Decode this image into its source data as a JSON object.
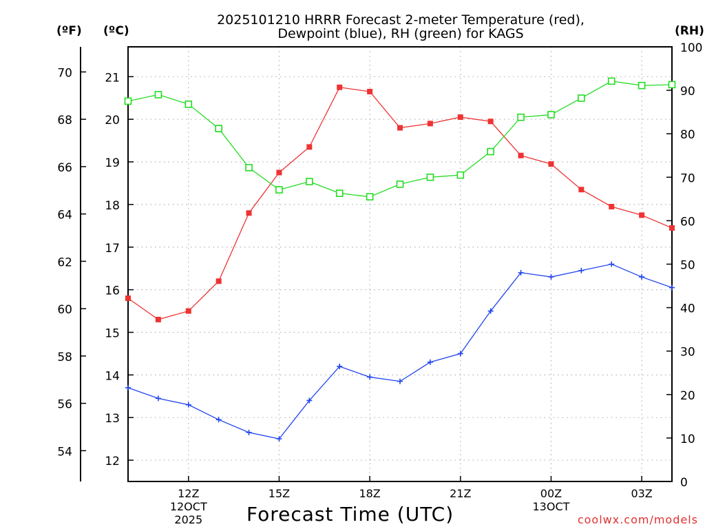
{
  "chart_data": {
    "type": "line",
    "title_lines": [
      "2025101210 HRRR Forecast 2-meter Temperature (red),",
      "Dewpoint (blue), RH (green) for KAGS"
    ],
    "xlabel": "Forecast Time (UTC)",
    "unit_labels": {
      "fahrenheit": "(ºF)",
      "celsius": "(ºC)",
      "rh": "(RH)"
    },
    "credit": "coolwx.com/models",
    "x_hours": [
      10,
      11,
      12,
      13,
      14,
      15,
      16,
      17,
      18,
      19,
      20,
      21,
      22,
      23,
      24,
      25,
      26,
      27,
      28
    ],
    "xlim": [
      10,
      28
    ],
    "x_ticks": [
      {
        "hour": 12,
        "label": [
          "12Z",
          "12OCT",
          "2025"
        ]
      },
      {
        "hour": 15,
        "label": [
          "15Z"
        ]
      },
      {
        "hour": 18,
        "label": [
          "18Z"
        ]
      },
      {
        "hour": 21,
        "label": [
          "21Z"
        ]
      },
      {
        "hour": 24,
        "label": [
          "00Z",
          "13OCT"
        ]
      },
      {
        "hour": 27,
        "label": [
          "03Z"
        ]
      }
    ],
    "celsius_axis": {
      "ylim": [
        11.5,
        21.7
      ],
      "ticks": [
        12,
        13,
        14,
        15,
        16,
        17,
        18,
        19,
        20,
        21
      ]
    },
    "fahrenheit_axis": {
      "ticks": [
        54,
        56,
        58,
        60,
        62,
        64,
        66,
        68,
        70
      ]
    },
    "rh_axis": {
      "ylim": [
        0,
        100
      ],
      "ticks": [
        0,
        10,
        20,
        30,
        40,
        50,
        60,
        70,
        80,
        90,
        100
      ]
    },
    "series": [
      {
        "name": "Temperature",
        "units": "C",
        "color": "#ee3333",
        "marker": "filled-square",
        "values": [
          15.8,
          15.3,
          15.5,
          16.2,
          17.8,
          18.75,
          19.35,
          20.75,
          20.65,
          19.8,
          19.9,
          20.05,
          19.95,
          19.15,
          18.95,
          18.35,
          17.95,
          17.75,
          17.45
        ]
      },
      {
        "name": "Dewpoint",
        "units": "C",
        "color": "#2244ee",
        "marker": "plus",
        "values": [
          13.7,
          13.45,
          13.3,
          12.95,
          12.65,
          12.5,
          13.4,
          14.2,
          13.95,
          13.85,
          14.3,
          14.5,
          15.5,
          16.4,
          16.3,
          16.45,
          16.6,
          16.3,
          16.05
        ]
      },
      {
        "name": "Relative Humidity",
        "units": "%",
        "color": "#22dd22",
        "marker": "open-square",
        "values": [
          87.5,
          89,
          86.8,
          81.2,
          72.2,
          67.1,
          69,
          66.3,
          65.5,
          68.4,
          70,
          70.5,
          75.9,
          83.8,
          84.4,
          88.2,
          92.1,
          91.1,
          91.3
        ]
      }
    ]
  }
}
